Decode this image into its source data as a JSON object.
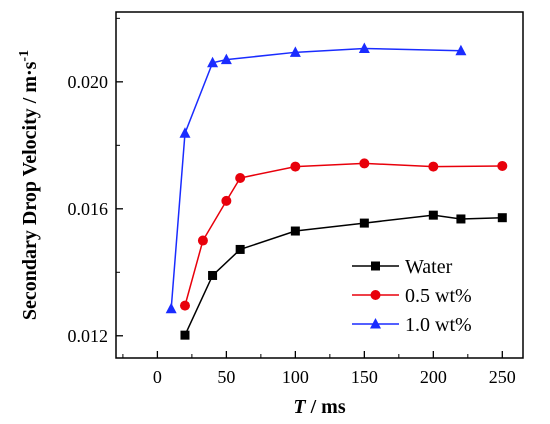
{
  "chart_data": {
    "type": "line",
    "xlabel_italic": "T",
    "xlabel_rest": " / ms",
    "ylabel_main": "Secondary Drop Velocity / m·s",
    "ylabel_sup": "-1",
    "xlim": [
      -30,
      265
    ],
    "ylim": [
      0.0113,
      0.0222
    ],
    "xticks": [
      0,
      50,
      100,
      150,
      200,
      250
    ],
    "xtick_labels": [
      "0",
      "50",
      "100",
      "150",
      "200",
      "250"
    ],
    "yticks": [
      0.012,
      0.016,
      0.02
    ],
    "ytick_labels": [
      "0.012",
      "0.016",
      "0.020"
    ],
    "legend_position": "lower-right",
    "series": [
      {
        "name": "Water",
        "color": "#000000",
        "marker": "square",
        "x": [
          20,
          40,
          60,
          100,
          150,
          200,
          220,
          250
        ],
        "y": [
          0.01202,
          0.0139,
          0.01472,
          0.0153,
          0.01555,
          0.0158,
          0.01568,
          0.01572
        ]
      },
      {
        "name": "0.5 wt%",
        "color": "#e8000b",
        "marker": "circle",
        "x": [
          20,
          33,
          50,
          60,
          100,
          150,
          200,
          250
        ],
        "y": [
          0.01295,
          0.015,
          0.01625,
          0.01697,
          0.01733,
          0.01743,
          0.01733,
          0.01735
        ]
      },
      {
        "name": "1.0 wt%",
        "color": "#1a2cff",
        "marker": "triangle",
        "x": [
          10,
          20,
          40,
          50,
          100,
          150,
          220
        ],
        "y": [
          0.01285,
          0.01838,
          0.0206,
          0.0207,
          0.02093,
          0.02105,
          0.02098
        ]
      }
    ]
  }
}
